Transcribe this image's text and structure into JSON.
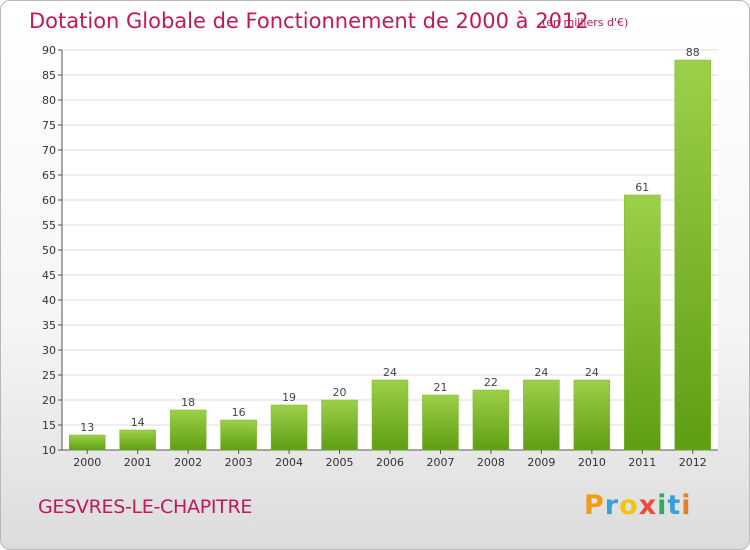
{
  "chart_data": {
    "type": "bar",
    "title": "Dotation Globale de Fonctionnement de 2000 à 2012",
    "subtitle": "(en milliers d'€)",
    "categories": [
      "2000",
      "2001",
      "2002",
      "2003",
      "2004",
      "2005",
      "2006",
      "2007",
      "2008",
      "2009",
      "2010",
      "2011",
      "2012"
    ],
    "values": [
      13,
      14,
      18,
      16,
      19,
      20,
      24,
      21,
      22,
      24,
      24,
      61,
      88
    ],
    "ylim": [
      10,
      90
    ],
    "yticks": [
      10,
      15,
      20,
      25,
      30,
      35,
      40,
      45,
      50,
      55,
      60,
      65,
      70,
      75,
      80,
      85,
      90
    ],
    "grid": true,
    "bar_color_top": "#9dd049",
    "bar_color_bottom": "#5e9e12"
  },
  "footer": {
    "commune": "GESVRES-LE-CHAPITRE",
    "logo_letters": [
      "P",
      "r",
      "o",
      "x",
      "i",
      "t",
      "i"
    ],
    "logo_colors": [
      "#f39c12",
      "#3aa0d8",
      "#f1c40f",
      "#e74c3c",
      "#27ae60",
      "#3aa0d8",
      "#e67e22"
    ]
  },
  "colors": {
    "title": "#c2185b",
    "grid": "#dddddd"
  }
}
